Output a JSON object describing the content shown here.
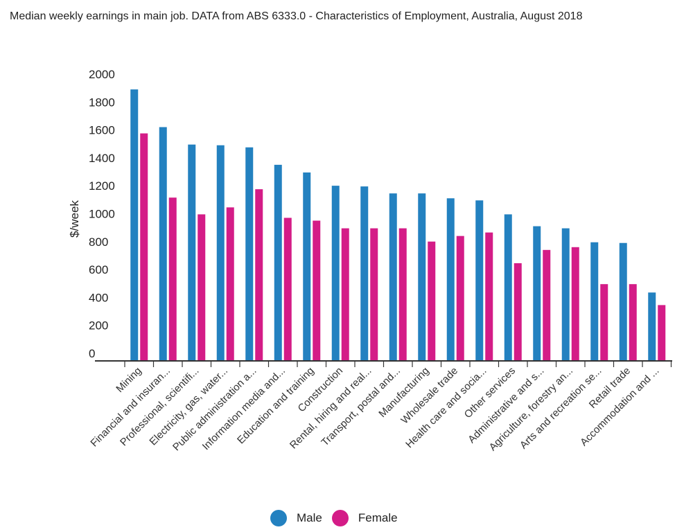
{
  "chart_data": {
    "type": "bar",
    "title": "Median weekly earnings in main job. DATA from ABS 6333.0 - Characteristics of Employment, Australia, August 2018",
    "xlabel": "",
    "ylabel": "$/week",
    "ylim": [
      0,
      2000
    ],
    "yticks": [
      "0",
      "200",
      "400",
      "600",
      "800",
      "1000",
      "1200",
      "1400",
      "1600",
      "1800",
      "2000"
    ],
    "grid": false,
    "legend_position": "bottom-center",
    "categories": [
      "Mining",
      "Financial and insuran...",
      "Professional, scientifi...",
      "Electricity, gas, water...",
      "Public administration a...",
      "Information media and...",
      "Education and training",
      "Construction",
      "Rental, hiring and real...",
      "Transport, postal and...",
      "Manufacturing",
      "Wholesale trade",
      "Health care and socia...",
      "Other services",
      "Administrative and s...",
      "Agriculture, forestry an...",
      "Arts and recreation se...",
      "Retail trade",
      "Accommodation and ..."
    ],
    "series": [
      {
        "name": "Male",
        "color": "#2381c0",
        "values": [
          1940,
          1670,
          1545,
          1540,
          1525,
          1400,
          1345,
          1250,
          1245,
          1195,
          1195,
          1160,
          1145,
          1045,
          960,
          945,
          845,
          840,
          485
        ]
      },
      {
        "name": "Female",
        "color": "#d41c87",
        "values": [
          1625,
          1165,
          1045,
          1095,
          1225,
          1020,
          1000,
          945,
          945,
          945,
          850,
          890,
          915,
          695,
          790,
          810,
          545,
          545,
          395
        ]
      }
    ]
  }
}
